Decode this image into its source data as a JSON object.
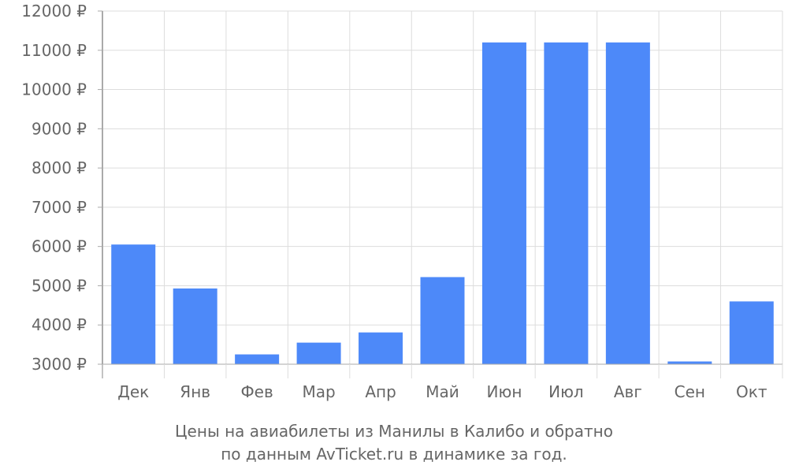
{
  "chart_data": {
    "type": "bar",
    "categories": [
      "Дек",
      "Янв",
      "Фев",
      "Мар",
      "Апр",
      "Май",
      "Июн",
      "Июл",
      "Авг",
      "Сен",
      "Окт"
    ],
    "values": [
      6050,
      4930,
      3250,
      3550,
      3810,
      5220,
      11200,
      11200,
      11200,
      3070,
      4600
    ],
    "ylim": [
      3000,
      12000
    ],
    "yticks": [
      3000,
      4000,
      5000,
      6000,
      7000,
      8000,
      9000,
      10000,
      11000,
      12000
    ],
    "ytick_labels": [
      "3000 ₽",
      "4000 ₽",
      "5000 ₽",
      "6000 ₽",
      "7000 ₽",
      "8000 ₽",
      "9000 ₽",
      "10000 ₽",
      "11000 ₽",
      "12000 ₽"
    ],
    "grid": true,
    "bar_color": "#4d89f9",
    "caption_line1": "Цены на авиабилеты из Манилы в Калибо и обратно",
    "caption_line2": "по данным AvTicket.ru в динамике за год."
  }
}
